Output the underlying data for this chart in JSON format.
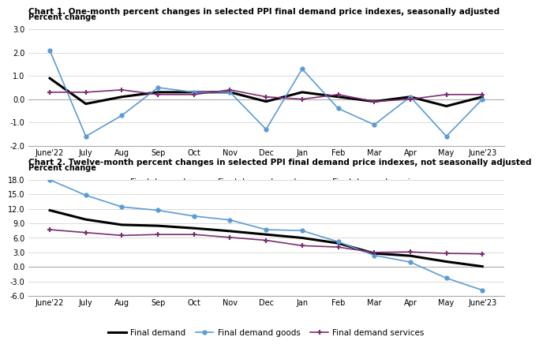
{
  "x_labels": [
    "June'22",
    "July",
    "Aug",
    "Sep",
    "Oct",
    "Nov",
    "Dec",
    "Jan",
    "Feb",
    "Mar",
    "Apr",
    "May",
    "June'23"
  ],
  "chart1": {
    "title": "Chart 1. One-month percent changes in selected PPI final demand price indexes, seasonally adjusted",
    "ylabel": "Percent change",
    "ylim": [
      -2.0,
      3.0
    ],
    "yticks": [
      -2.0,
      -1.0,
      0.0,
      1.0,
      2.0,
      3.0
    ],
    "final_demand": [
      0.9,
      -0.2,
      0.1,
      0.3,
      0.3,
      0.3,
      -0.1,
      0.3,
      0.1,
      -0.1,
      0.1,
      -0.3,
      0.1
    ],
    "final_demand_goods": [
      2.1,
      -1.6,
      -0.7,
      0.5,
      0.3,
      0.3,
      -1.3,
      1.3,
      -0.4,
      -1.1,
      0.1,
      -1.6,
      0.0
    ],
    "final_demand_services": [
      0.3,
      0.3,
      0.4,
      0.2,
      0.2,
      0.4,
      0.1,
      0.0,
      0.2,
      -0.1,
      0.0,
      0.2,
      0.2
    ]
  },
  "chart2": {
    "title": "Chart 2. Twelve-month percent changes in selected PPI final demand price indexes, not seasonally adjusted",
    "ylabel": "Percent change",
    "ylim": [
      -6.0,
      18.0
    ],
    "yticks": [
      -6.0,
      -3.0,
      0.0,
      3.0,
      6.0,
      9.0,
      12.0,
      15.0,
      18.0
    ],
    "final_demand": [
      11.7,
      9.8,
      8.7,
      8.5,
      8.0,
      7.4,
      6.7,
      6.0,
      4.9,
      2.8,
      2.3,
      1.1,
      0.1
    ],
    "final_demand_goods": [
      18.0,
      14.8,
      12.4,
      11.7,
      10.5,
      9.7,
      7.7,
      7.5,
      5.2,
      2.4,
      1.0,
      -2.3,
      -4.8
    ],
    "final_demand_services": [
      7.7,
      7.1,
      6.5,
      6.7,
      6.7,
      6.1,
      5.5,
      4.4,
      4.1,
      3.0,
      3.1,
      2.8,
      2.7
    ]
  },
  "colors": {
    "final_demand": "#000000",
    "final_demand_goods": "#5B9BD5",
    "final_demand_services": "#7B2D6F"
  },
  "legend_labels": [
    "Final demand",
    "Final demand goods",
    "Final demand services"
  ],
  "bg_color": "#FFFFFF",
  "plot_bg_color": "#FFFFFF",
  "grid_color": "#CCCCCC",
  "zero_line_color": "#AAAAAA"
}
